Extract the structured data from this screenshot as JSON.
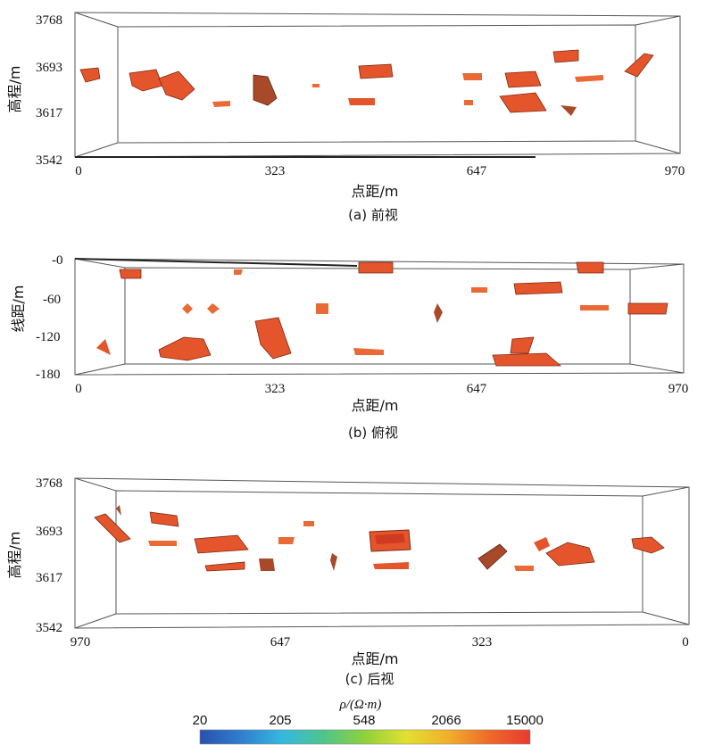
{
  "panels": [
    {
      "id": "front",
      "caption": "(a) 前视",
      "xlabel": "点距/m",
      "ylabel": "高程/m",
      "xticks": [
        "0",
        "323",
        "647",
        "970"
      ],
      "yticks": [
        "3768",
        "3693",
        "3617",
        "3542"
      ],
      "xlim": [
        0,
        970
      ],
      "ylim": [
        3542,
        3768
      ]
    },
    {
      "id": "top",
      "caption": "(b) 俯视",
      "xlabel": "点距/m",
      "ylabel": "线距/m",
      "xticks": [
        "0",
        "323",
        "647",
        "970"
      ],
      "yticks": [
        "-0",
        "-60",
        "-120",
        "-180"
      ],
      "xlim": [
        0,
        970
      ],
      "ylim": [
        -180,
        0
      ]
    },
    {
      "id": "back",
      "caption": "(c) 后视",
      "xlabel": "点距/m",
      "ylabel": "高程/m",
      "xticks": [
        "970",
        "647",
        "323",
        "0"
      ],
      "yticks": [
        "3768",
        "3693",
        "3617",
        "3542"
      ],
      "xlim": [
        970,
        0
      ],
      "ylim": [
        3542,
        3768
      ]
    }
  ],
  "colorbar": {
    "title": "ρ/(Ω·m)",
    "ticks": [
      "20",
      "205",
      "548",
      "2066",
      "15000"
    ],
    "colors": [
      "#2a4fb0",
      "#2f7fd0",
      "#35b8e0",
      "#4fc58a",
      "#8fd23a",
      "#e2e030",
      "#f2b02a",
      "#ef6a2a",
      "#e83a2e"
    ]
  },
  "chart_data": [
    {
      "type": "other",
      "view": "front",
      "xlabel": "点距/m",
      "ylabel": "高程/m",
      "xlim": [
        0,
        970
      ],
      "ylim": [
        3542,
        3768
      ]
    },
    {
      "type": "other",
      "view": "top",
      "xlabel": "点距/m",
      "ylabel": "线距/m",
      "xlim": [
        0,
        970
      ],
      "ylim": [
        -180,
        0
      ]
    },
    {
      "type": "other",
      "view": "back",
      "xlabel": "点距/m",
      "ylabel": "高程/m",
      "xlim": [
        970,
        0
      ],
      "ylim": [
        3542,
        3768
      ]
    }
  ]
}
